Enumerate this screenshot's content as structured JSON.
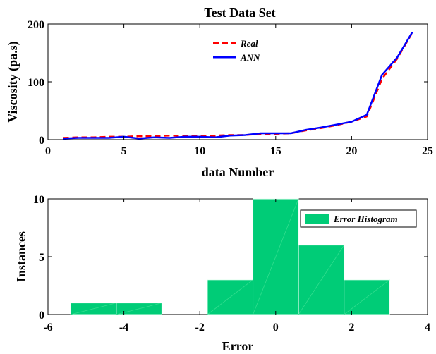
{
  "chart_data": [
    {
      "type": "line",
      "title": "Test Data Set",
      "xlabel": "data Number",
      "ylabel": "Viscosity (pa.s)",
      "xlim": [
        0,
        25
      ],
      "ylim": [
        0,
        200
      ],
      "xticks": [
        0,
        5,
        10,
        15,
        20,
        25
      ],
      "yticks": [
        0,
        100,
        200
      ],
      "legend_position": "top-center",
      "x": [
        1,
        2,
        3,
        4,
        5,
        6,
        7,
        8,
        9,
        10,
        11,
        12,
        13,
        14,
        15,
        16,
        17,
        18,
        19,
        20,
        21,
        22,
        23,
        24
      ],
      "series": [
        {
          "name": "Real",
          "color": "#ff0000",
          "style": "dashed",
          "values": [
            3,
            4,
            4,
            5,
            5,
            6,
            6,
            7,
            7,
            7,
            7,
            8,
            8,
            10,
            10,
            11,
            16,
            20,
            25,
            31,
            40,
            105,
            140,
            185
          ]
        },
        {
          "name": "ANN",
          "color": "#0000ff",
          "style": "solid",
          "values": [
            2,
            3,
            3,
            3,
            5,
            2,
            4,
            3,
            5,
            5,
            4,
            7,
            8,
            11,
            11,
            11,
            17,
            21,
            26,
            31,
            43,
            112,
            142,
            186
          ]
        }
      ]
    },
    {
      "type": "bar",
      "xlabel": "Error",
      "ylabel": "Instances",
      "xlim": [
        -6,
        4
      ],
      "ylim": [
        0,
        10
      ],
      "xticks": [
        -6,
        -4,
        -2,
        0,
        2,
        4
      ],
      "yticks": [
        0,
        5,
        10
      ],
      "legend_position": "top-right",
      "bar_color": "#00cc77",
      "series": [
        {
          "name": "Error Histogram",
          "bins": [
            {
              "from": -5.4,
              "to": -4.2,
              "value": 1
            },
            {
              "from": -4.2,
              "to": -3.0,
              "value": 1
            },
            {
              "from": -3.0,
              "to": -1.8,
              "value": 0
            },
            {
              "from": -1.8,
              "to": -0.6,
              "value": 3
            },
            {
              "from": -0.6,
              "to": 0.6,
              "value": 10
            },
            {
              "from": 0.6,
              "to": 1.8,
              "value": 6
            },
            {
              "from": 1.8,
              "to": 3.0,
              "value": 3
            }
          ]
        }
      ]
    }
  ]
}
